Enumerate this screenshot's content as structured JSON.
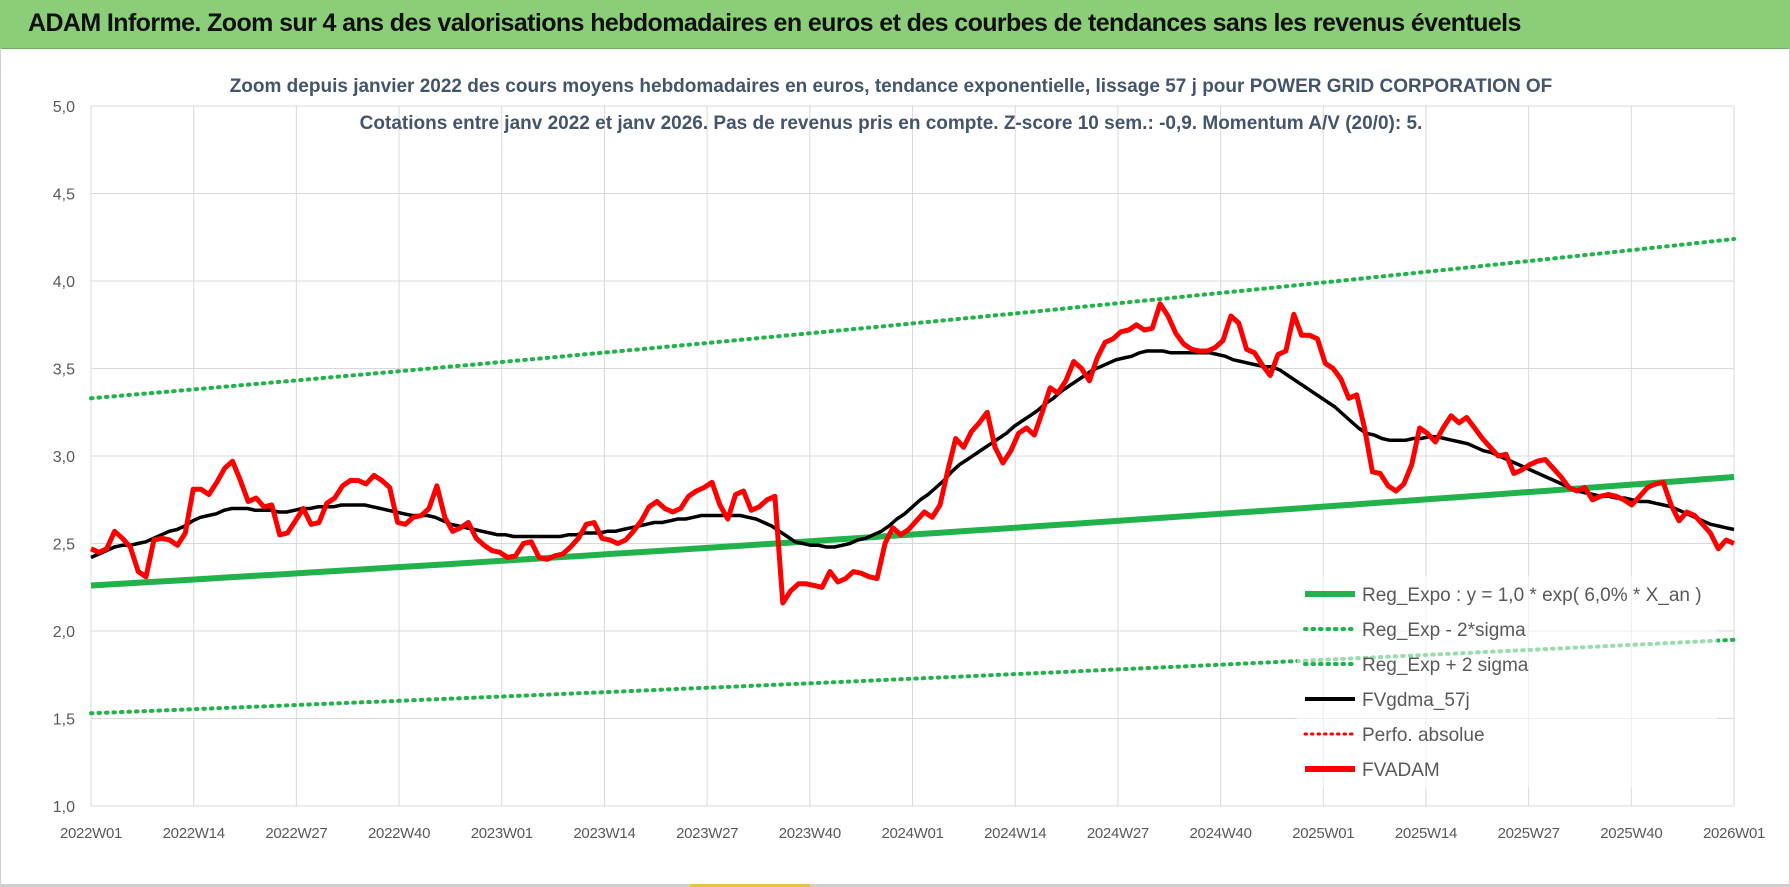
{
  "banner": {
    "title": "ADAM Informe. Zoom sur 4 ans des valorisations hebdomadaires en euros et des courbes de tendances sans les revenus éventuels"
  },
  "colors": {
    "banner_bg": "#8ccd7a",
    "regression": "#21b24b",
    "smoothing": "#000000",
    "price": "#ff0000",
    "perf": "#ff0000",
    "grid": "#d9d9d9",
    "title_text": "#44546a",
    "axis_text": "#595959"
  },
  "chart_data": {
    "type": "line",
    "title_line1": "Zoom depuis janvier 2022 des cours moyens hebdomadaires en euros, tendance exponentielle, lissage 57 j pour POWER GRID CORPORATION OF",
    "title_line2": "Cotations entre janv 2022 et janv 2026. Pas de revenus pris en compte. Z-score 10 sem.: -0,9. Momentum A/V (20/0): 5.",
    "xlabel": "",
    "ylabel": "",
    "ylim": [
      1.0,
      5.0
    ],
    "yticks": [
      "5,0",
      "4,5",
      "4,0",
      "3,5",
      "3,0",
      "2,5",
      "2,0",
      "1,5",
      "1,0"
    ],
    "x_categories": [
      "2022W01",
      "2022W14",
      "2022W27",
      "2022W40",
      "2023W01",
      "2023W14",
      "2023W27",
      "2023W40",
      "2024W01",
      "2024W14",
      "2024W27",
      "2024W40",
      "2025W01",
      "2025W14",
      "2025W27",
      "2025W40",
      "2026W01"
    ],
    "grid": true,
    "legend_position": "bottom-right",
    "legend": [
      {
        "name": "Reg_Expo : y = 1,0 * exp( 6,0% *  X_an )",
        "style": "solid-green"
      },
      {
        "name": "Reg_Exp - 2*sigma",
        "style": "dotted-green"
      },
      {
        "name": "Reg_Exp + 2 sigma",
        "style": "dotted-green"
      },
      {
        "name": "FVgdma_57j",
        "style": "solid-black"
      },
      {
        "name": "Perfo. absolue",
        "style": "dotted-red"
      },
      {
        "name": "FVADAM",
        "style": "solid-red"
      }
    ],
    "regression": {
      "start": 2.26,
      "end": 2.88
    },
    "upper_band": {
      "start": 3.33,
      "end": 4.24
    },
    "lower_band": {
      "start": 1.53,
      "end": 1.95
    },
    "fvadam": [
      2.47,
      2.45,
      2.47,
      2.57,
      2.53,
      2.48,
      2.34,
      2.31,
      2.52,
      2.53,
      2.52,
      2.49,
      2.56,
      2.81,
      2.81,
      2.78,
      2.85,
      2.93,
      2.97,
      2.86,
      2.74,
      2.76,
      2.71,
      2.72,
      2.55,
      2.56,
      2.63,
      2.7,
      2.61,
      2.62,
      2.73,
      2.76,
      2.83,
      2.86,
      2.86,
      2.84,
      2.89,
      2.86,
      2.82,
      2.62,
      2.61,
      2.65,
      2.66,
      2.7,
      2.83,
      2.65,
      2.57,
      2.59,
      2.62,
      2.53,
      2.49,
      2.46,
      2.45,
      2.42,
      2.43,
      2.5,
      2.51,
      2.42,
      2.41,
      2.43,
      2.44,
      2.48,
      2.53,
      2.61,
      2.62,
      2.53,
      2.52,
      2.5,
      2.52,
      2.57,
      2.63,
      2.71,
      2.74,
      2.7,
      2.68,
      2.7,
      2.77,
      2.8,
      2.82,
      2.85,
      2.72,
      2.64,
      2.78,
      2.8,
      2.69,
      2.71,
      2.75,
      2.77,
      2.16,
      2.23,
      2.27,
      2.27,
      2.26,
      2.25,
      2.34,
      2.28,
      2.3,
      2.34,
      2.33,
      2.31,
      2.3,
      2.5,
      2.59,
      2.55,
      2.58,
      2.63,
      2.68,
      2.65,
      2.72,
      2.92,
      3.1,
      3.05,
      3.14,
      3.19,
      3.25,
      3.05,
      2.96,
      3.03,
      3.13,
      3.16,
      3.12,
      3.25,
      3.39,
      3.36,
      3.43,
      3.54,
      3.5,
      3.43,
      3.56,
      3.65,
      3.67,
      3.71,
      3.72,
      3.75,
      3.72,
      3.73,
      3.87,
      3.8,
      3.7,
      3.64,
      3.61,
      3.6,
      3.6,
      3.62,
      3.66,
      3.8,
      3.76,
      3.61,
      3.59,
      3.52,
      3.46,
      3.58,
      3.6,
      3.81,
      3.69,
      3.69,
      3.67,
      3.53,
      3.5,
      3.44,
      3.33,
      3.35,
      3.16,
      2.91,
      2.9,
      2.83,
      2.8,
      2.84,
      2.95,
      3.16,
      3.13,
      3.08,
      3.16,
      3.23,
      3.19,
      3.22,
      3.16,
      3.1,
      3.05,
      3.0,
      3.01,
      2.9,
      2.92,
      2.95,
      2.97,
      2.98,
      2.93,
      2.88,
      2.82,
      2.8,
      2.82,
      2.75,
      2.77,
      2.78,
      2.77,
      2.75,
      2.72,
      2.77,
      2.82,
      2.84,
      2.85,
      2.72,
      2.63,
      2.68,
      2.66,
      2.61,
      2.56,
      2.47,
      2.52,
      2.5
    ],
    "fvgdma_57j": [
      2.42,
      2.44,
      2.46,
      2.48,
      2.49,
      2.49,
      2.5,
      2.51,
      2.53,
      2.55,
      2.57,
      2.58,
      2.6,
      2.63,
      2.65,
      2.66,
      2.67,
      2.69,
      2.7,
      2.7,
      2.7,
      2.69,
      2.69,
      2.69,
      2.68,
      2.68,
      2.69,
      2.7,
      2.7,
      2.71,
      2.71,
      2.71,
      2.72,
      2.72,
      2.72,
      2.72,
      2.71,
      2.7,
      2.69,
      2.68,
      2.67,
      2.66,
      2.66,
      2.66,
      2.65,
      2.63,
      2.61,
      2.6,
      2.59,
      2.58,
      2.57,
      2.56,
      2.55,
      2.55,
      2.54,
      2.54,
      2.54,
      2.54,
      2.54,
      2.54,
      2.54,
      2.55,
      2.55,
      2.56,
      2.56,
      2.56,
      2.57,
      2.57,
      2.58,
      2.59,
      2.6,
      2.61,
      2.62,
      2.62,
      2.63,
      2.64,
      2.64,
      2.65,
      2.66,
      2.66,
      2.66,
      2.66,
      2.66,
      2.66,
      2.65,
      2.64,
      2.62,
      2.6,
      2.57,
      2.54,
      2.51,
      2.5,
      2.49,
      2.49,
      2.48,
      2.48,
      2.49,
      2.5,
      2.52,
      2.53,
      2.55,
      2.57,
      2.6,
      2.64,
      2.67,
      2.71,
      2.75,
      2.78,
      2.82,
      2.86,
      2.91,
      2.95,
      2.98,
      3.01,
      3.04,
      3.07,
      3.1,
      3.13,
      3.17,
      3.2,
      3.23,
      3.26,
      3.3,
      3.33,
      3.37,
      3.4,
      3.43,
      3.46,
      3.49,
      3.51,
      3.53,
      3.55,
      3.56,
      3.57,
      3.59,
      3.6,
      3.6,
      3.6,
      3.59,
      3.59,
      3.59,
      3.59,
      3.59,
      3.59,
      3.58,
      3.57,
      3.55,
      3.54,
      3.53,
      3.52,
      3.51,
      3.51,
      3.49,
      3.46,
      3.43,
      3.4,
      3.37,
      3.34,
      3.31,
      3.28,
      3.24,
      3.2,
      3.16,
      3.13,
      3.12,
      3.1,
      3.09,
      3.09,
      3.09,
      3.1,
      3.1,
      3.11,
      3.11,
      3.1,
      3.09,
      3.08,
      3.07,
      3.05,
      3.03,
      3.02,
      3.0,
      2.98,
      2.96,
      2.94,
      2.92,
      2.9,
      2.88,
      2.86,
      2.84,
      2.82,
      2.8,
      2.79,
      2.78,
      2.77,
      2.77,
      2.76,
      2.76,
      2.75,
      2.74,
      2.74,
      2.73,
      2.72,
      2.71,
      2.69,
      2.67,
      2.65,
      2.63,
      2.61,
      2.6,
      2.59,
      2.58
    ]
  }
}
